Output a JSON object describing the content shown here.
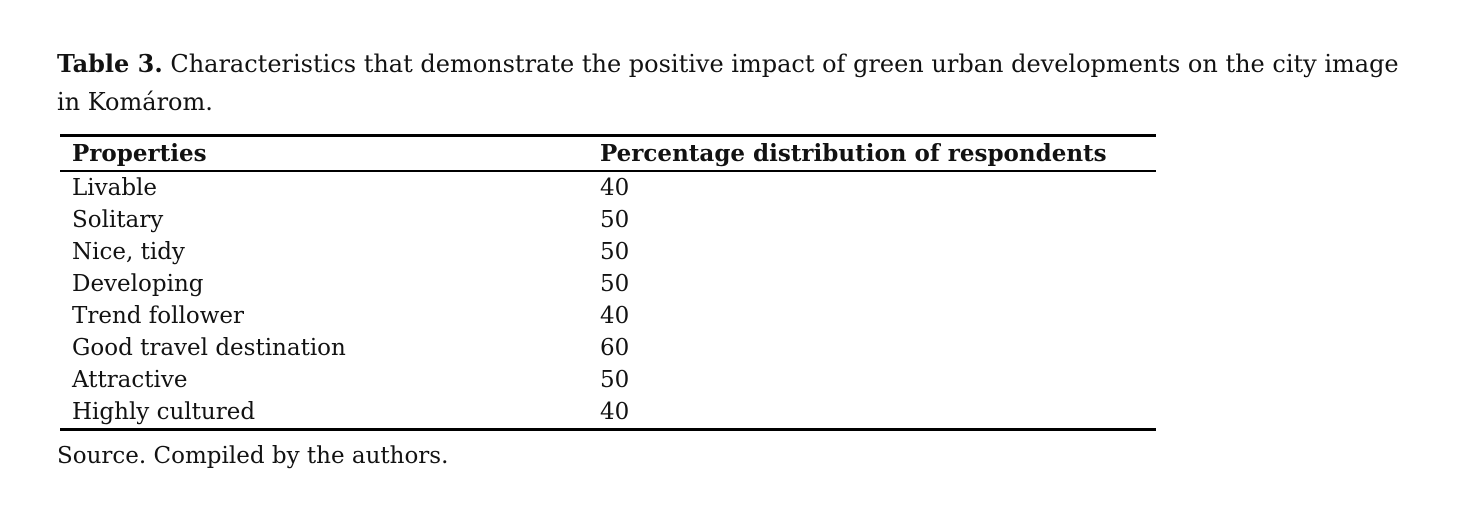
{
  "caption": {
    "label": "Table 3.",
    "line1": " Characteristics that demonstrate the positive impact of green urban developments on the city image",
    "line2": "in Komárom."
  },
  "table": {
    "columns": [
      "Properties",
      "Percentage distribution of respondents"
    ],
    "rows": [
      {
        "property": "Livable",
        "value": "40"
      },
      {
        "property": "Solitary",
        "value": "50"
      },
      {
        "property": "Nice, tidy",
        "value": "50"
      },
      {
        "property": "Developing",
        "value": "50"
      },
      {
        "property": "Trend follower",
        "value": "40"
      },
      {
        "property": "Good travel destination",
        "value": "60"
      },
      {
        "property": "Attractive",
        "value": "50"
      },
      {
        "property": "Highly cultured",
        "value": "40"
      }
    ]
  },
  "footer": {
    "source_note": "Source. Compiled by the authors."
  },
  "colors": {
    "text": "#121212",
    "rule": "#000000",
    "background": "#ffffff"
  }
}
